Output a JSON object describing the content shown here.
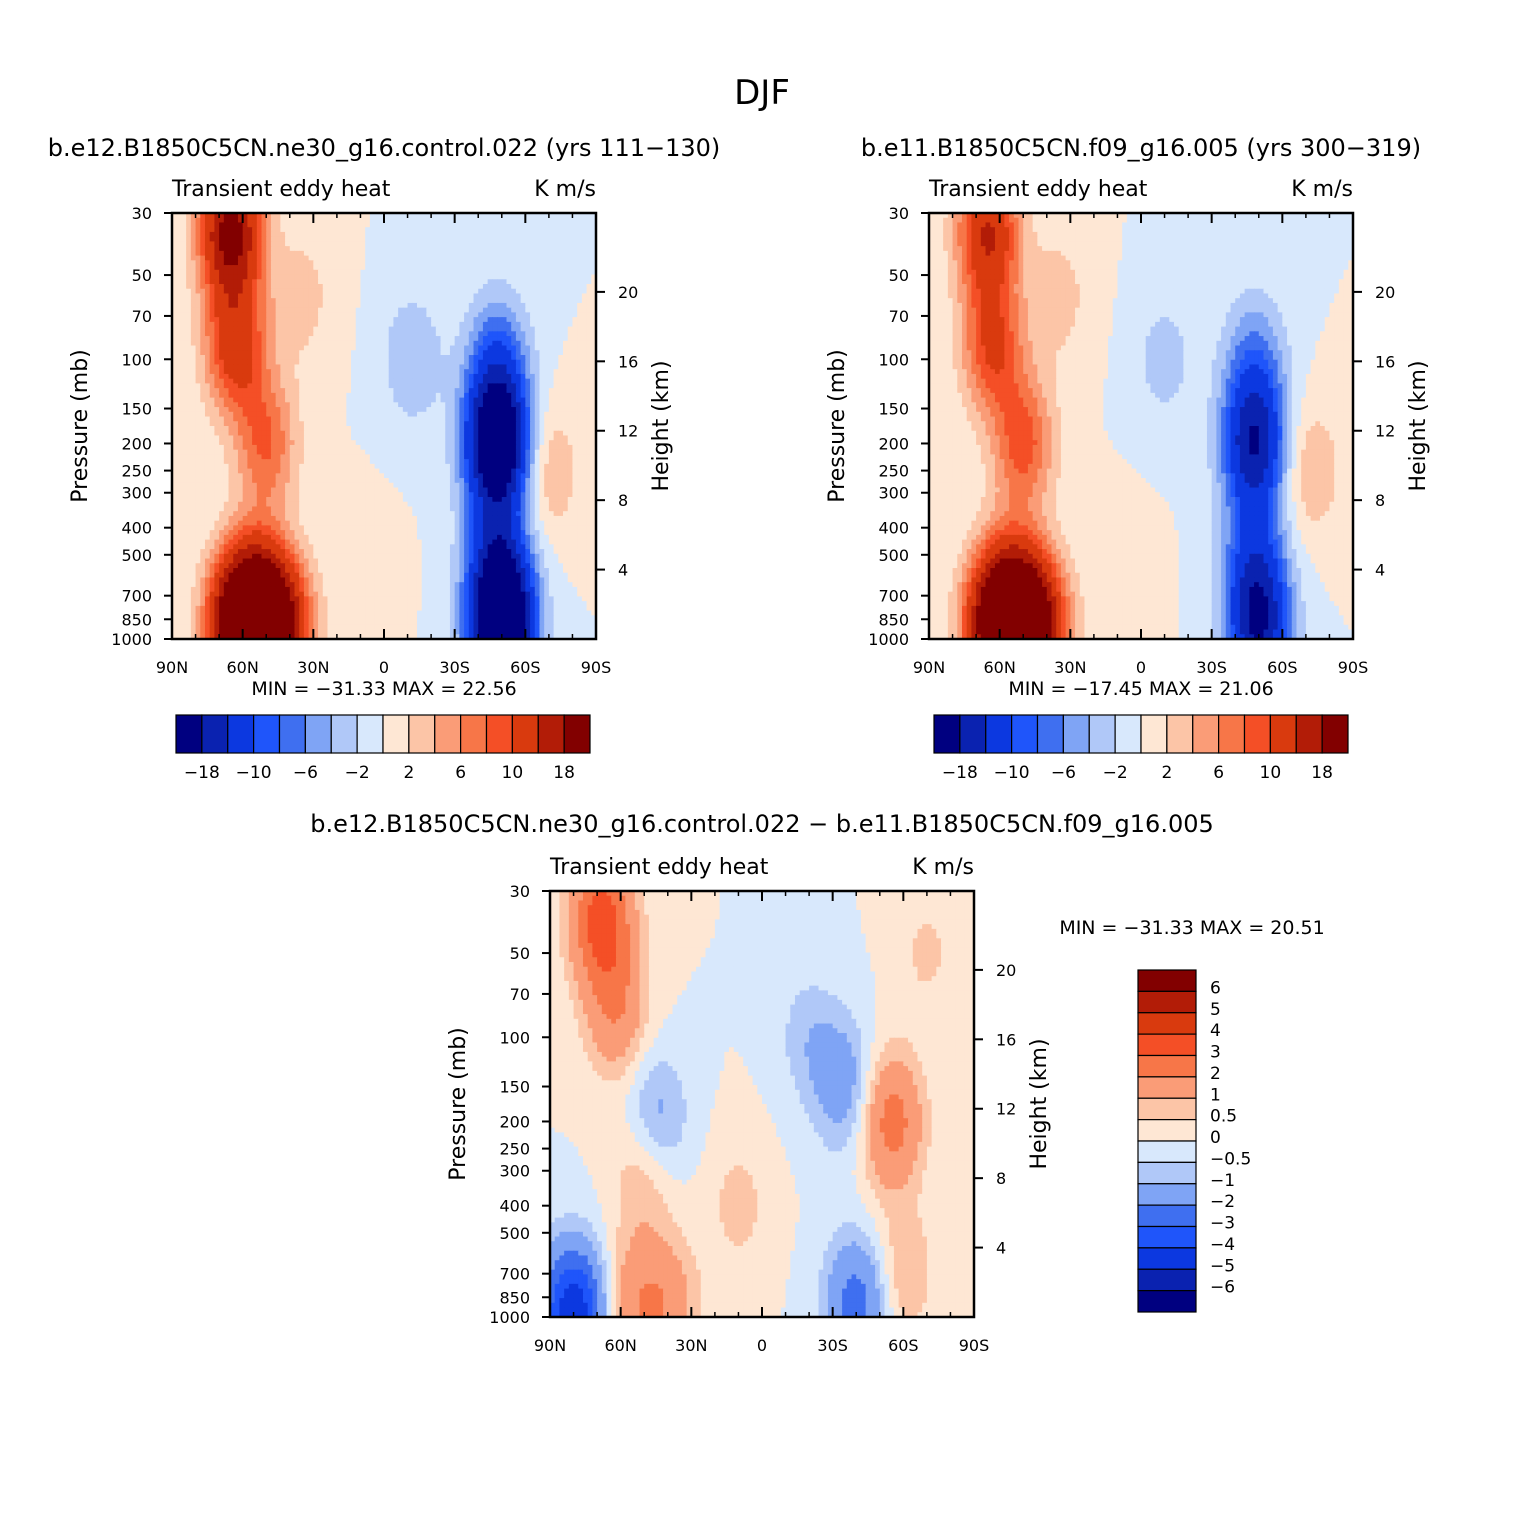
{
  "figure_title": "DJF",
  "chart_data": [
    {
      "type": "heatmap",
      "title": "b.e12.B1850C5CN.ne30_g16.control.022 (yrs 111-130)",
      "left_string": "Transient eddy heat",
      "right_string": "K m/s",
      "xlabel": "",
      "ylabel": "Pressure (mb)",
      "y2label": "Height (km)",
      "x_ticks": [
        "90N",
        "60N",
        "30N",
        "0",
        "30S",
        "60S",
        "90S"
      ],
      "y_ticks": [
        30,
        50,
        70,
        100,
        150,
        200,
        250,
        300,
        400,
        500,
        700,
        850,
        1000
      ],
      "y2_ticks": [
        20,
        16,
        12,
        8,
        4
      ],
      "ylim": [
        1000,
        30
      ],
      "scale": "log",
      "stats": "MIN = -31.33   MAX =  22.56",
      "min": -31.33,
      "max": 22.56,
      "colorbar_labels": [
        "-18",
        "-10",
        "-6",
        "-2",
        "2",
        "6",
        "10",
        "18"
      ],
      "features": [
        {
          "lat": 65,
          "p": 35,
          "v": 20
        },
        {
          "lat": 63,
          "p": 90,
          "v": 12
        },
        {
          "lat": 50,
          "p": 200,
          "v": 8
        },
        {
          "lat": 62,
          "p": 900,
          "v": 22
        },
        {
          "lat": 45,
          "p": 900,
          "v": 21
        },
        {
          "lat": 55,
          "p": 700,
          "v": 12
        },
        {
          "lat": -48,
          "p": 200,
          "v": -26
        },
        {
          "lat": -50,
          "p": 900,
          "v": -31
        },
        {
          "lat": -48,
          "p": 500,
          "v": -10
        },
        {
          "lat": -48,
          "p": 100,
          "v": -8
        },
        {
          "lat": -12,
          "p": 100,
          "v": -4
        },
        {
          "lat": -70,
          "p": 250,
          "v": 4
        },
        {
          "lat": 10,
          "p": 600,
          "v": 1.5
        },
        {
          "lat": 35,
          "p": 60,
          "v": 3
        }
      ]
    },
    {
      "type": "heatmap",
      "title": "b.e11.B1850C5CN.f09_g16.005 (yrs 300-319)",
      "left_string": "Transient eddy heat",
      "right_string": "K m/s",
      "xlabel": "",
      "ylabel": "Pressure (mb)",
      "y2label": "Height (km)",
      "x_ticks": [
        "90N",
        "60N",
        "30N",
        "0",
        "30S",
        "60S",
        "90S"
      ],
      "y_ticks": [
        30,
        50,
        70,
        100,
        150,
        200,
        250,
        300,
        400,
        500,
        700,
        850,
        1000
      ],
      "y2_ticks": [
        20,
        16,
        12,
        8,
        4
      ],
      "ylim": [
        1000,
        30
      ],
      "scale": "log",
      "stats": "MIN = -17.45   MAX =  21.06",
      "min": -17.45,
      "max": 21.06,
      "colorbar_labels": [
        "-18",
        "-10",
        "-6",
        "-2",
        "2",
        "6",
        "10",
        "18"
      ],
      "features": [
        {
          "lat": 65,
          "p": 35,
          "v": 14
        },
        {
          "lat": 63,
          "p": 90,
          "v": 10
        },
        {
          "lat": 50,
          "p": 200,
          "v": 9
        },
        {
          "lat": 62,
          "p": 900,
          "v": 20
        },
        {
          "lat": 45,
          "p": 900,
          "v": 21
        },
        {
          "lat": 55,
          "p": 700,
          "v": 12
        },
        {
          "lat": -48,
          "p": 200,
          "v": -17
        },
        {
          "lat": -50,
          "p": 900,
          "v": -17
        },
        {
          "lat": -48,
          "p": 500,
          "v": -8
        },
        {
          "lat": -48,
          "p": 100,
          "v": -6
        },
        {
          "lat": -10,
          "p": 100,
          "v": -3
        },
        {
          "lat": -72,
          "p": 250,
          "v": 4
        },
        {
          "lat": 10,
          "p": 600,
          "v": 1.5
        },
        {
          "lat": 35,
          "p": 60,
          "v": 3
        }
      ]
    },
    {
      "type": "heatmap",
      "title": "b.e12.B1850C5CN.ne30_g16.control.022 - b.e11.B1850C5CN.f09_g16.005",
      "left_string": "Transient eddy heat",
      "right_string": "K m/s",
      "xlabel": "",
      "ylabel": "Pressure (mb)",
      "y2label": "Height (km)",
      "x_ticks": [
        "90N",
        "60N",
        "30N",
        "0",
        "30S",
        "60S",
        "90S"
      ],
      "y_ticks": [
        30,
        50,
        70,
        100,
        150,
        200,
        250,
        300,
        400,
        500,
        700,
        850,
        1000
      ],
      "y2_ticks": [
        20,
        16,
        12,
        8,
        4
      ],
      "ylim": [
        1000,
        30
      ],
      "scale": "log",
      "stats": "MIN = -31.33   MAX =  20.51",
      "min": -31.33,
      "max": 20.51,
      "colorbar_labels": [
        "6",
        "5",
        "4",
        "3",
        "2",
        "1",
        "0.5",
        "0",
        "-0.5",
        "-1",
        "-2",
        "-3",
        "-4",
        "-5",
        "-6"
      ],
      "features": [
        {
          "lat": 68,
          "p": 38,
          "v": 3.5
        },
        {
          "lat": 62,
          "p": 80,
          "v": 1.8
        },
        {
          "lat": 50,
          "p": 300,
          "v": 1.2
        },
        {
          "lat": 55,
          "p": 900,
          "v": 1.5
        },
        {
          "lat": 40,
          "p": 900,
          "v": 1.5
        },
        {
          "lat": -55,
          "p": 200,
          "v": 2.5
        },
        {
          "lat": -40,
          "p": 900,
          "v": -2.5
        },
        {
          "lat": -35,
          "p": 150,
          "v": -1.5
        },
        {
          "lat": -20,
          "p": 100,
          "v": -0.8
        },
        {
          "lat": 45,
          "p": 200,
          "v": -1.5
        },
        {
          "lat": 80,
          "p": 980,
          "v": -5
        },
        {
          "lat": 10,
          "p": 400,
          "v": 0.7
        },
        {
          "lat": -70,
          "p": 50,
          "v": 0.6
        },
        {
          "lat": -60,
          "p": 700,
          "v": 1
        }
      ]
    }
  ],
  "palette_main": {
    "levels": [
      -18,
      -14,
      -10,
      -8,
      -6,
      -4,
      -2,
      0,
      2,
      4,
      6,
      8,
      10,
      14,
      18
    ],
    "colors": [
      "#000080",
      "#0a22b0",
      "#0c38e0",
      "#1f55fa",
      "#3f6ff0",
      "#7fa4f5",
      "#b0c8f8",
      "#d8e8fc",
      "#fee7d4",
      "#fcc5a7",
      "#fa9c77",
      "#f77648",
      "#f44f26",
      "#d93a0e",
      "#b21c07",
      "#820000"
    ]
  },
  "palette_diff": {
    "levels": [
      -6,
      -5,
      -4,
      -3,
      -2,
      -1,
      -0.5,
      0,
      0.5,
      1,
      2,
      3,
      4,
      5,
      6
    ],
    "colors": [
      "#000080",
      "#0a22b0",
      "#0c38e0",
      "#1f55fa",
      "#3f6ff0",
      "#7fa4f5",
      "#b0c8f8",
      "#d8e8fc",
      "#fee7d4",
      "#fcc5a7",
      "#fa9c77",
      "#f77648",
      "#f44f26",
      "#d93a0e",
      "#b21c07",
      "#820000"
    ]
  }
}
